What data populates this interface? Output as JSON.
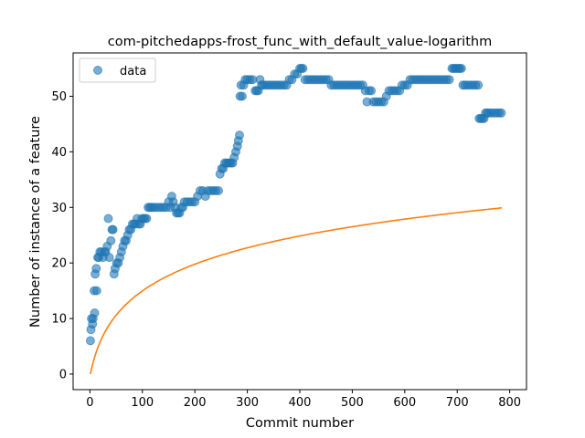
{
  "chart_data": {
    "type": "scatter",
    "title": "com-pitchedapps-frost_func_with_default_value-logarithm",
    "xlabel": "Commit number",
    "ylabel": "Number of instance of a feature",
    "xlim": [
      -32,
      832
    ],
    "ylim": [
      -2.8,
      57.8
    ],
    "xticks": [
      0,
      100,
      200,
      300,
      400,
      500,
      600,
      700,
      800
    ],
    "yticks": [
      0,
      10,
      20,
      30,
      40,
      50
    ],
    "grid": false,
    "legend": {
      "placement": "top-left",
      "entries": [
        "data"
      ]
    },
    "colors": {
      "data": "#1f77b4",
      "fit": "#ff7f0e"
    },
    "series": [
      {
        "name": "data",
        "kind": "scatter",
        "points": [
          [
            1,
            6
          ],
          [
            2,
            8
          ],
          [
            3,
            10
          ],
          [
            5,
            9
          ],
          [
            6,
            10
          ],
          [
            8,
            15
          ],
          [
            9,
            11
          ],
          [
            10,
            18
          ],
          [
            12,
            19
          ],
          [
            13,
            15
          ],
          [
            15,
            21
          ],
          [
            17,
            21
          ],
          [
            19,
            22
          ],
          [
            22,
            22
          ],
          [
            25,
            21
          ],
          [
            28,
            22
          ],
          [
            30,
            22
          ],
          [
            33,
            23
          ],
          [
            35,
            28
          ],
          [
            37,
            21
          ],
          [
            40,
            24
          ],
          [
            42,
            26
          ],
          [
            44,
            26
          ],
          [
            46,
            18
          ],
          [
            48,
            19
          ],
          [
            51,
            20
          ],
          [
            54,
            20
          ],
          [
            57,
            21
          ],
          [
            60,
            22
          ],
          [
            63,
            23
          ],
          [
            66,
            24
          ],
          [
            69,
            24
          ],
          [
            72,
            25
          ],
          [
            75,
            26
          ],
          [
            78,
            26
          ],
          [
            81,
            27
          ],
          [
            84,
            27
          ],
          [
            87,
            27
          ],
          [
            90,
            28
          ],
          [
            93,
            27
          ],
          [
            96,
            27
          ],
          [
            99,
            28
          ],
          [
            102,
            28
          ],
          [
            105,
            28
          ],
          [
            108,
            28
          ],
          [
            111,
            30
          ],
          [
            114,
            30
          ],
          [
            117,
            30
          ],
          [
            120,
            30
          ],
          [
            125,
            30
          ],
          [
            130,
            30
          ],
          [
            135,
            30
          ],
          [
            140,
            30
          ],
          [
            145,
            30
          ],
          [
            150,
            31
          ],
          [
            153,
            30
          ],
          [
            156,
            32
          ],
          [
            159,
            31
          ],
          [
            162,
            30
          ],
          [
            165,
            29
          ],
          [
            168,
            29
          ],
          [
            171,
            29
          ],
          [
            174,
            30
          ],
          [
            177,
            30
          ],
          [
            180,
            31
          ],
          [
            185,
            31
          ],
          [
            190,
            31
          ],
          [
            195,
            31
          ],
          [
            200,
            31
          ],
          [
            205,
            32
          ],
          [
            210,
            33
          ],
          [
            215,
            33
          ],
          [
            220,
            32
          ],
          [
            225,
            33
          ],
          [
            230,
            33
          ],
          [
            235,
            33
          ],
          [
            240,
            33
          ],
          [
            245,
            33
          ],
          [
            248,
            36
          ],
          [
            251,
            37
          ],
          [
            254,
            37
          ],
          [
            257,
            38
          ],
          [
            260,
            38
          ],
          [
            263,
            38
          ],
          [
            266,
            38
          ],
          [
            269,
            38
          ],
          [
            272,
            38
          ],
          [
            275,
            39
          ],
          [
            278,
            40
          ],
          [
            281,
            41
          ],
          [
            283,
            42
          ],
          [
            285,
            43
          ],
          [
            286,
            50
          ],
          [
            288,
            52
          ],
          [
            290,
            50
          ],
          [
            293,
            52
          ],
          [
            296,
            53
          ],
          [
            300,
            53
          ],
          [
            305,
            53
          ],
          [
            310,
            53
          ],
          [
            315,
            51
          ],
          [
            318,
            51
          ],
          [
            321,
            51
          ],
          [
            324,
            53
          ],
          [
            327,
            52
          ],
          [
            330,
            52
          ],
          [
            335,
            52
          ],
          [
            340,
            52
          ],
          [
            345,
            52
          ],
          [
            350,
            52
          ],
          [
            355,
            52
          ],
          [
            360,
            52
          ],
          [
            365,
            52
          ],
          [
            370,
            52
          ],
          [
            375,
            52
          ],
          [
            380,
            53
          ],
          [
            385,
            53
          ],
          [
            390,
            54
          ],
          [
            395,
            54
          ],
          [
            400,
            55
          ],
          [
            403,
            55
          ],
          [
            406,
            55
          ],
          [
            410,
            53
          ],
          [
            415,
            53
          ],
          [
            420,
            53
          ],
          [
            425,
            53
          ],
          [
            430,
            53
          ],
          [
            435,
            53
          ],
          [
            440,
            53
          ],
          [
            445,
            53
          ],
          [
            450,
            53
          ],
          [
            455,
            53
          ],
          [
            460,
            52
          ],
          [
            465,
            52
          ],
          [
            470,
            52
          ],
          [
            475,
            52
          ],
          [
            480,
            52
          ],
          [
            485,
            52
          ],
          [
            490,
            52
          ],
          [
            495,
            52
          ],
          [
            500,
            52
          ],
          [
            505,
            52
          ],
          [
            510,
            52
          ],
          [
            515,
            52
          ],
          [
            520,
            52
          ],
          [
            525,
            51
          ],
          [
            528,
            49
          ],
          [
            532,
            51
          ],
          [
            536,
            51
          ],
          [
            540,
            49
          ],
          [
            545,
            49
          ],
          [
            550,
            49
          ],
          [
            555,
            49
          ],
          [
            560,
            49
          ],
          [
            565,
            50
          ],
          [
            570,
            51
          ],
          [
            575,
            51
          ],
          [
            580,
            51
          ],
          [
            585,
            51
          ],
          [
            590,
            51
          ],
          [
            595,
            52
          ],
          [
            600,
            52
          ],
          [
            605,
            52
          ],
          [
            610,
            53
          ],
          [
            615,
            53
          ],
          [
            620,
            53
          ],
          [
            625,
            53
          ],
          [
            630,
            53
          ],
          [
            635,
            53
          ],
          [
            640,
            53
          ],
          [
            645,
            53
          ],
          [
            650,
            53
          ],
          [
            655,
            53
          ],
          [
            660,
            53
          ],
          [
            665,
            53
          ],
          [
            670,
            53
          ],
          [
            675,
            53
          ],
          [
            680,
            53
          ],
          [
            685,
            53
          ],
          [
            690,
            55
          ],
          [
            693,
            55
          ],
          [
            696,
            55
          ],
          [
            699,
            55
          ],
          [
            702,
            55
          ],
          [
            705,
            55
          ],
          [
            708,
            55
          ],
          [
            711,
            52
          ],
          [
            715,
            52
          ],
          [
            720,
            52
          ],
          [
            725,
            52
          ],
          [
            730,
            52
          ],
          [
            735,
            52
          ],
          [
            740,
            52
          ],
          [
            742,
            46
          ],
          [
            745,
            46
          ],
          [
            748,
            46
          ],
          [
            751,
            46
          ],
          [
            754,
            47
          ],
          [
            757,
            47
          ],
          [
            760,
            47
          ],
          [
            765,
            47
          ],
          [
            770,
            47
          ],
          [
            775,
            47
          ],
          [
            780,
            47
          ],
          [
            784,
            47
          ]
        ]
      },
      {
        "kind": "line",
        "model": "logarithm",
        "x_range": [
          1,
          785
        ],
        "coeffs": {
          "a": 7.726,
          "b": 0.06
        }
      }
    ]
  }
}
